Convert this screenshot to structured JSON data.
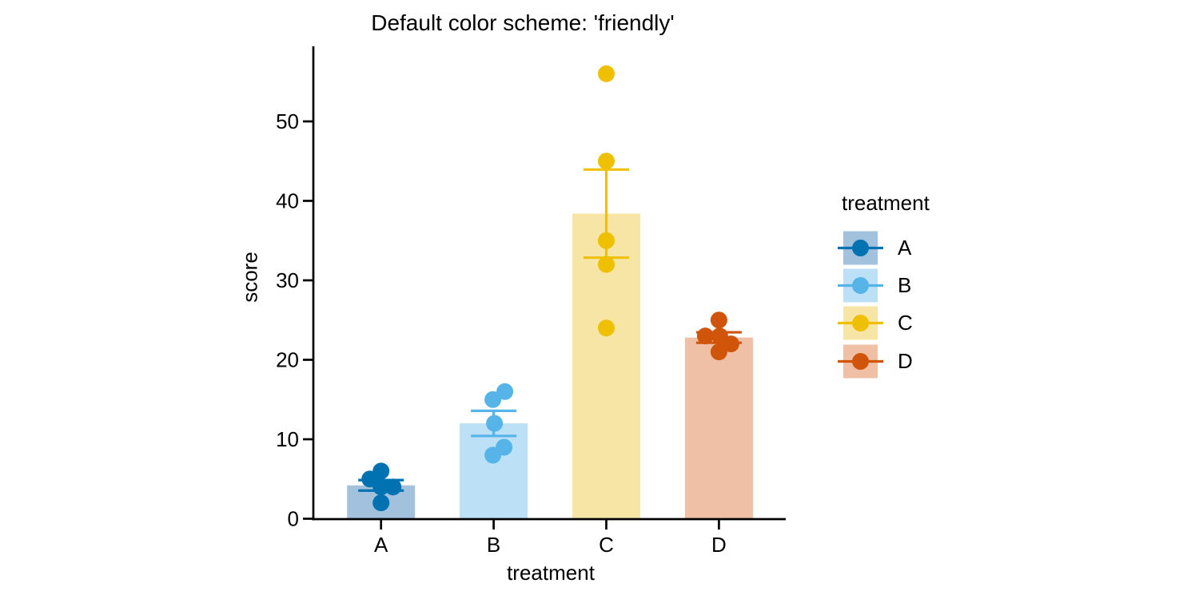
{
  "chart_data": {
    "type": "bar",
    "title": "Default color scheme: 'friendly'",
    "xlabel": "treatment",
    "ylabel": "score",
    "categories": [
      "A",
      "B",
      "C",
      "D"
    ],
    "yticks": [
      0,
      10,
      20,
      30,
      40,
      50
    ],
    "ylim": [
      0,
      59
    ],
    "grid": false,
    "background": "#ffffff",
    "axis_color": "#000000",
    "text_color": "#000000",
    "legend": {
      "title": "treatment",
      "position": "right",
      "labels": [
        "A",
        "B",
        "C",
        "D"
      ]
    },
    "series": [
      {
        "label": "A",
        "color": "#0072B2",
        "fill": "#A2C1DD",
        "mean": 4.2,
        "sem": 0.66,
        "points": [
          {
            "value": 6,
            "dx": 0
          },
          {
            "value": 5,
            "dx": -14
          },
          {
            "value": 4,
            "dx": 0
          },
          {
            "value": 4,
            "dx": 15
          },
          {
            "value": 2,
            "dx": 0
          }
        ]
      },
      {
        "label": "B",
        "color": "#56B4E9",
        "fill": "#BCE0F5",
        "mean": 12.0,
        "sem": 1.58,
        "points": [
          {
            "value": 16,
            "dx": 14
          },
          {
            "value": 15,
            "dx": -1
          },
          {
            "value": 12,
            "dx": 1
          },
          {
            "value": 9,
            "dx": 13
          },
          {
            "value": 8,
            "dx": -1
          }
        ]
      },
      {
        "label": "C",
        "color": "#EFC000",
        "fill": "#F7E5A6",
        "mean": 38.4,
        "sem": 5.54,
        "points": [
          {
            "value": 56,
            "dx": 0
          },
          {
            "value": 45,
            "dx": 0
          },
          {
            "value": 35,
            "dx": 0
          },
          {
            "value": 32,
            "dx": 0
          },
          {
            "value": 24,
            "dx": 0
          }
        ]
      },
      {
        "label": "D",
        "color": "#D0550A",
        "fill": "#EFC0A5",
        "mean": 22.8,
        "sem": 0.66,
        "points": [
          {
            "value": 25,
            "dx": 0
          },
          {
            "value": 23,
            "dx": -17
          },
          {
            "value": 23,
            "dx": 1
          },
          {
            "value": 22,
            "dx": 15
          },
          {
            "value": 21,
            "dx": 0
          }
        ]
      }
    ]
  }
}
